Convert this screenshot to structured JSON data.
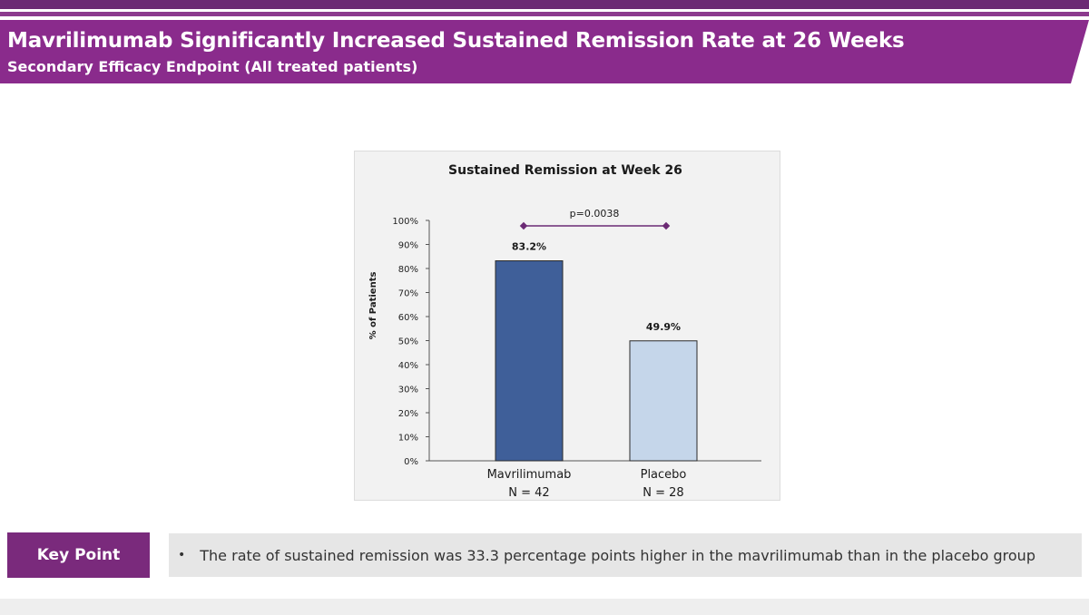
{
  "header": {
    "title": "Mavrilimumab Significantly Increased Sustained Remission Rate at 26 Weeks",
    "subtitle": "Secondary Efficacy Endpoint  (All treated patients)"
  },
  "chart_data": {
    "type": "bar",
    "title": "Sustained Remission at Week 26",
    "ylabel": "% of Patients",
    "xlabel": "",
    "ylim": [
      0,
      100
    ],
    "yticks": [
      "0%",
      "10%",
      "20%",
      "30%",
      "40%",
      "50%",
      "60%",
      "70%",
      "80%",
      "90%",
      "100%"
    ],
    "categories": [
      "Mavrilimumab",
      "Placebo"
    ],
    "category_sublabels": [
      "N = 42",
      "N = 28"
    ],
    "values": [
      83.2,
      49.9
    ],
    "value_labels": [
      "83.2%",
      "49.9%"
    ],
    "bar_colors": [
      "#3f5f99",
      "#c5d6ea"
    ],
    "annotation": "p=0.0038",
    "grid": false
  },
  "key_point": {
    "label": "Key Point",
    "bullet": "•",
    "text": "The rate of sustained remission was 33.3 percentage points higher in the mavrilimumab than in the placebo group"
  },
  "colors": {
    "brand_purple": "#8a2b8c",
    "key_label_purple": "#7a2a7c",
    "significance_marker": "#6b2a74"
  }
}
